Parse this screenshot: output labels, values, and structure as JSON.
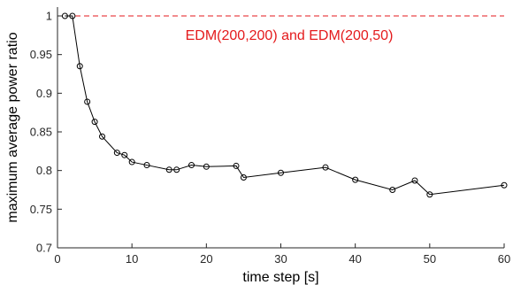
{
  "chart_data": {
    "type": "line",
    "title": "",
    "xlabel": "time step [s]",
    "ylabel": "maximum average power ratio",
    "xlim": [
      0,
      60
    ],
    "ylim": [
      0.7,
      1.0
    ],
    "xticks": [
      "0",
      "10",
      "20",
      "30",
      "40",
      "50",
      "60"
    ],
    "yticks": [
      "0.7",
      "0.75",
      "0.8",
      "0.85",
      "0.9",
      "0.95",
      "1"
    ],
    "grid": false,
    "marker": "circle",
    "series": [
      {
        "color": "#000000",
        "x": [
          1,
          2,
          3,
          4,
          5,
          6,
          8,
          9,
          10,
          12,
          15,
          16,
          18,
          20,
          24,
          25,
          30,
          36,
          40,
          45,
          48,
          50,
          60
        ],
        "y": [
          1.0,
          1.0,
          0.935,
          0.889,
          0.863,
          0.844,
          0.823,
          0.82,
          0.811,
          0.807,
          0.801,
          0.801,
          0.807,
          0.805,
          0.806,
          0.791,
          0.797,
          0.804,
          0.788,
          0.775,
          0.787,
          0.769,
          0.781
        ]
      }
    ],
    "reference_line": {
      "y": 1.0,
      "style": "dashed",
      "color": "#e41a1c",
      "label": "EDM(200,200) and EDM(200,50)"
    }
  }
}
